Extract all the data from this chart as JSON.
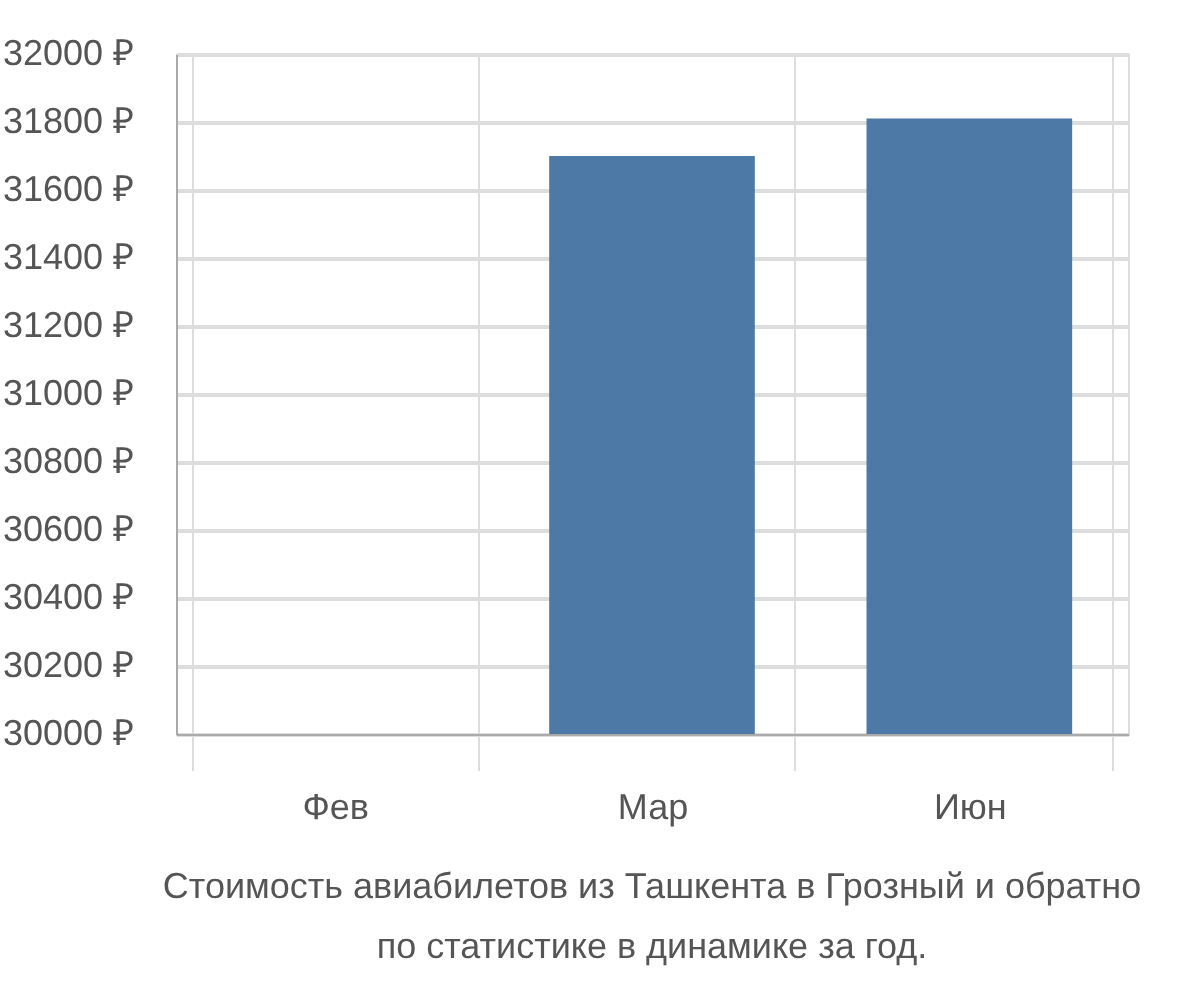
{
  "chart_data": {
    "type": "bar",
    "categories": [
      "Фев",
      "Мар",
      "Июн"
    ],
    "values": [
      30000,
      31700,
      31810
    ],
    "color": "#4d79a7",
    "ylim": [
      30000,
      32000
    ],
    "yticks": [
      {
        "value": 30000,
        "label": "30000 ₽"
      },
      {
        "value": 30200,
        "label": "30200 ₽"
      },
      {
        "value": 30400,
        "label": "30400 ₽"
      },
      {
        "value": 30600,
        "label": "30600 ₽"
      },
      {
        "value": 30800,
        "label": "30800 ₽"
      },
      {
        "value": 31000,
        "label": "31000 ₽"
      },
      {
        "value": 31200,
        "label": "31200 ₽"
      },
      {
        "value": 31400,
        "label": "31400 ₽"
      },
      {
        "value": 31600,
        "label": "31600 ₽"
      },
      {
        "value": 31800,
        "label": "31800 ₽"
      },
      {
        "value": 32000,
        "label": "32000 ₽"
      }
    ],
    "grid": true,
    "annotations": [
      "Стоимость авиабилетов из Ташкента в Грозный и обратно",
      "по статистике в динамике за год."
    ]
  }
}
